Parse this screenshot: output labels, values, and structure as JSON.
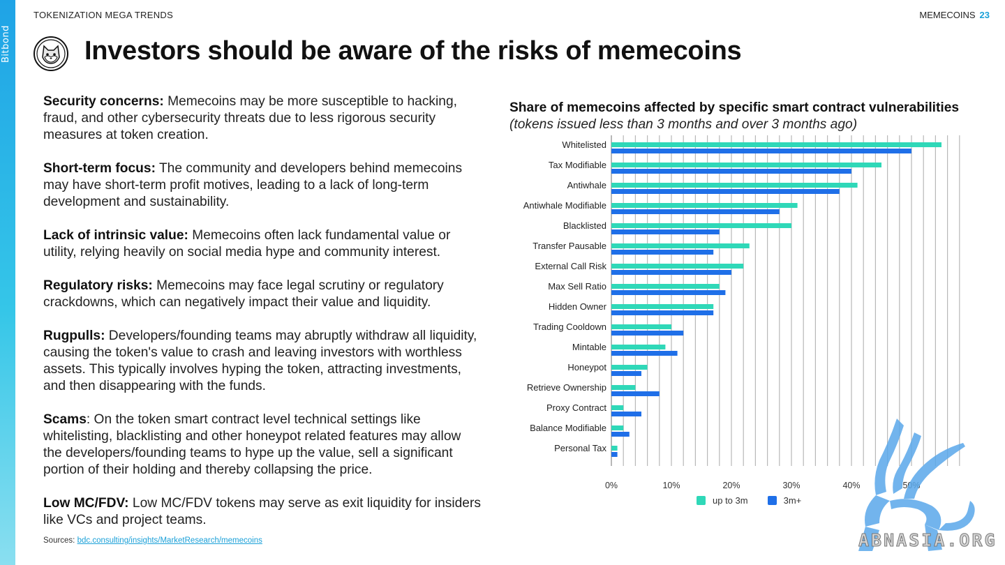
{
  "header": {
    "section": "TOKENIZATION MEGA TRENDS",
    "topic": "MEMECOINS",
    "page_number": "23",
    "brand": "Bitbond"
  },
  "title": "Investors should be aware of the risks of memecoins",
  "risks": [
    {
      "heading": "Security concerns:",
      "text": " Memecoins may be more susceptible to hacking, fraud, and other cybersecurity threats due to less rigorous security measures at token creation."
    },
    {
      "heading": "Short-term focus:",
      "text": " The community and developers behind memecoins may have short-term profit motives, leading to a lack of long-term development and sustainability."
    },
    {
      "heading": "Lack of intrinsic value:",
      "text": " Memecoins often lack fundamental value or utility, relying heavily on social media hype and community interest."
    },
    {
      "heading": "Regulatory risks:",
      "text": " Memecoins may face legal scrutiny or regulatory crackdowns, which can negatively impact their value and liquidity."
    },
    {
      "heading": "Rugpulls:",
      "text": " Developers/founding teams may abruptly withdraw all liquidity, causing the token's value to crash and leaving investors with worthless assets. This typically involves hyping the token, attracting investments, and then disappearing with the funds."
    },
    {
      "heading": "Scams",
      "text": ": On the token smart contract level technical settings like whitelisting, blacklisting and other honeypot related features may allow the developers/founding teams to hype up the value, sell a significant portion of their holding and thereby collapsing the price."
    },
    {
      "heading": "Low MC/FDV:",
      "text": " Low MC/FDV tokens may serve as exit liquidity for insiders like VCs and project teams."
    }
  ],
  "sources": {
    "label": "Sources: ",
    "link": "bdc.consulting/insights/MarketResearch/memecoins"
  },
  "watermark": "ABNASIA.ORG",
  "colors": {
    "up_to_3m": "#2fd8b8",
    "over_3m": "#1f6fe8",
    "accent": "#1aa0d8"
  },
  "chart_data": {
    "type": "bar",
    "orientation": "horizontal",
    "title": "Share of memecoins affected by specific smart contract vulnerabilities",
    "subtitle": "(tokens issued less than 3 months and over 3 months ago)",
    "categories": [
      "Whitelisted",
      "Tax Modifiable",
      "Antiwhale",
      "Antiwhale Modifiable",
      "Blacklisted",
      "Transfer Pausable",
      "External Call Risk",
      "Max Sell Ratio",
      "Hidden Owner",
      "Trading Cooldown",
      "Mintable",
      "Honeypot",
      "Retrieve Ownership",
      "Proxy Contract",
      "Balance Modifiable",
      "Personal Tax"
    ],
    "series": [
      {
        "name": "up to 3m",
        "values": [
          55,
          45,
          41,
          31,
          30,
          23,
          22,
          18,
          17,
          10,
          9,
          6,
          4,
          2,
          2,
          1
        ]
      },
      {
        "name": "3m+",
        "values": [
          50,
          40,
          38,
          28,
          18,
          17,
          20,
          19,
          17,
          12,
          11,
          5,
          8,
          5,
          3,
          1
        ]
      }
    ],
    "xticks": [
      "0%",
      "10%",
      "20%",
      "30%",
      "40%",
      "50%"
    ],
    "xlim": [
      0,
      58
    ],
    "grid": true,
    "legend": "bottom"
  }
}
